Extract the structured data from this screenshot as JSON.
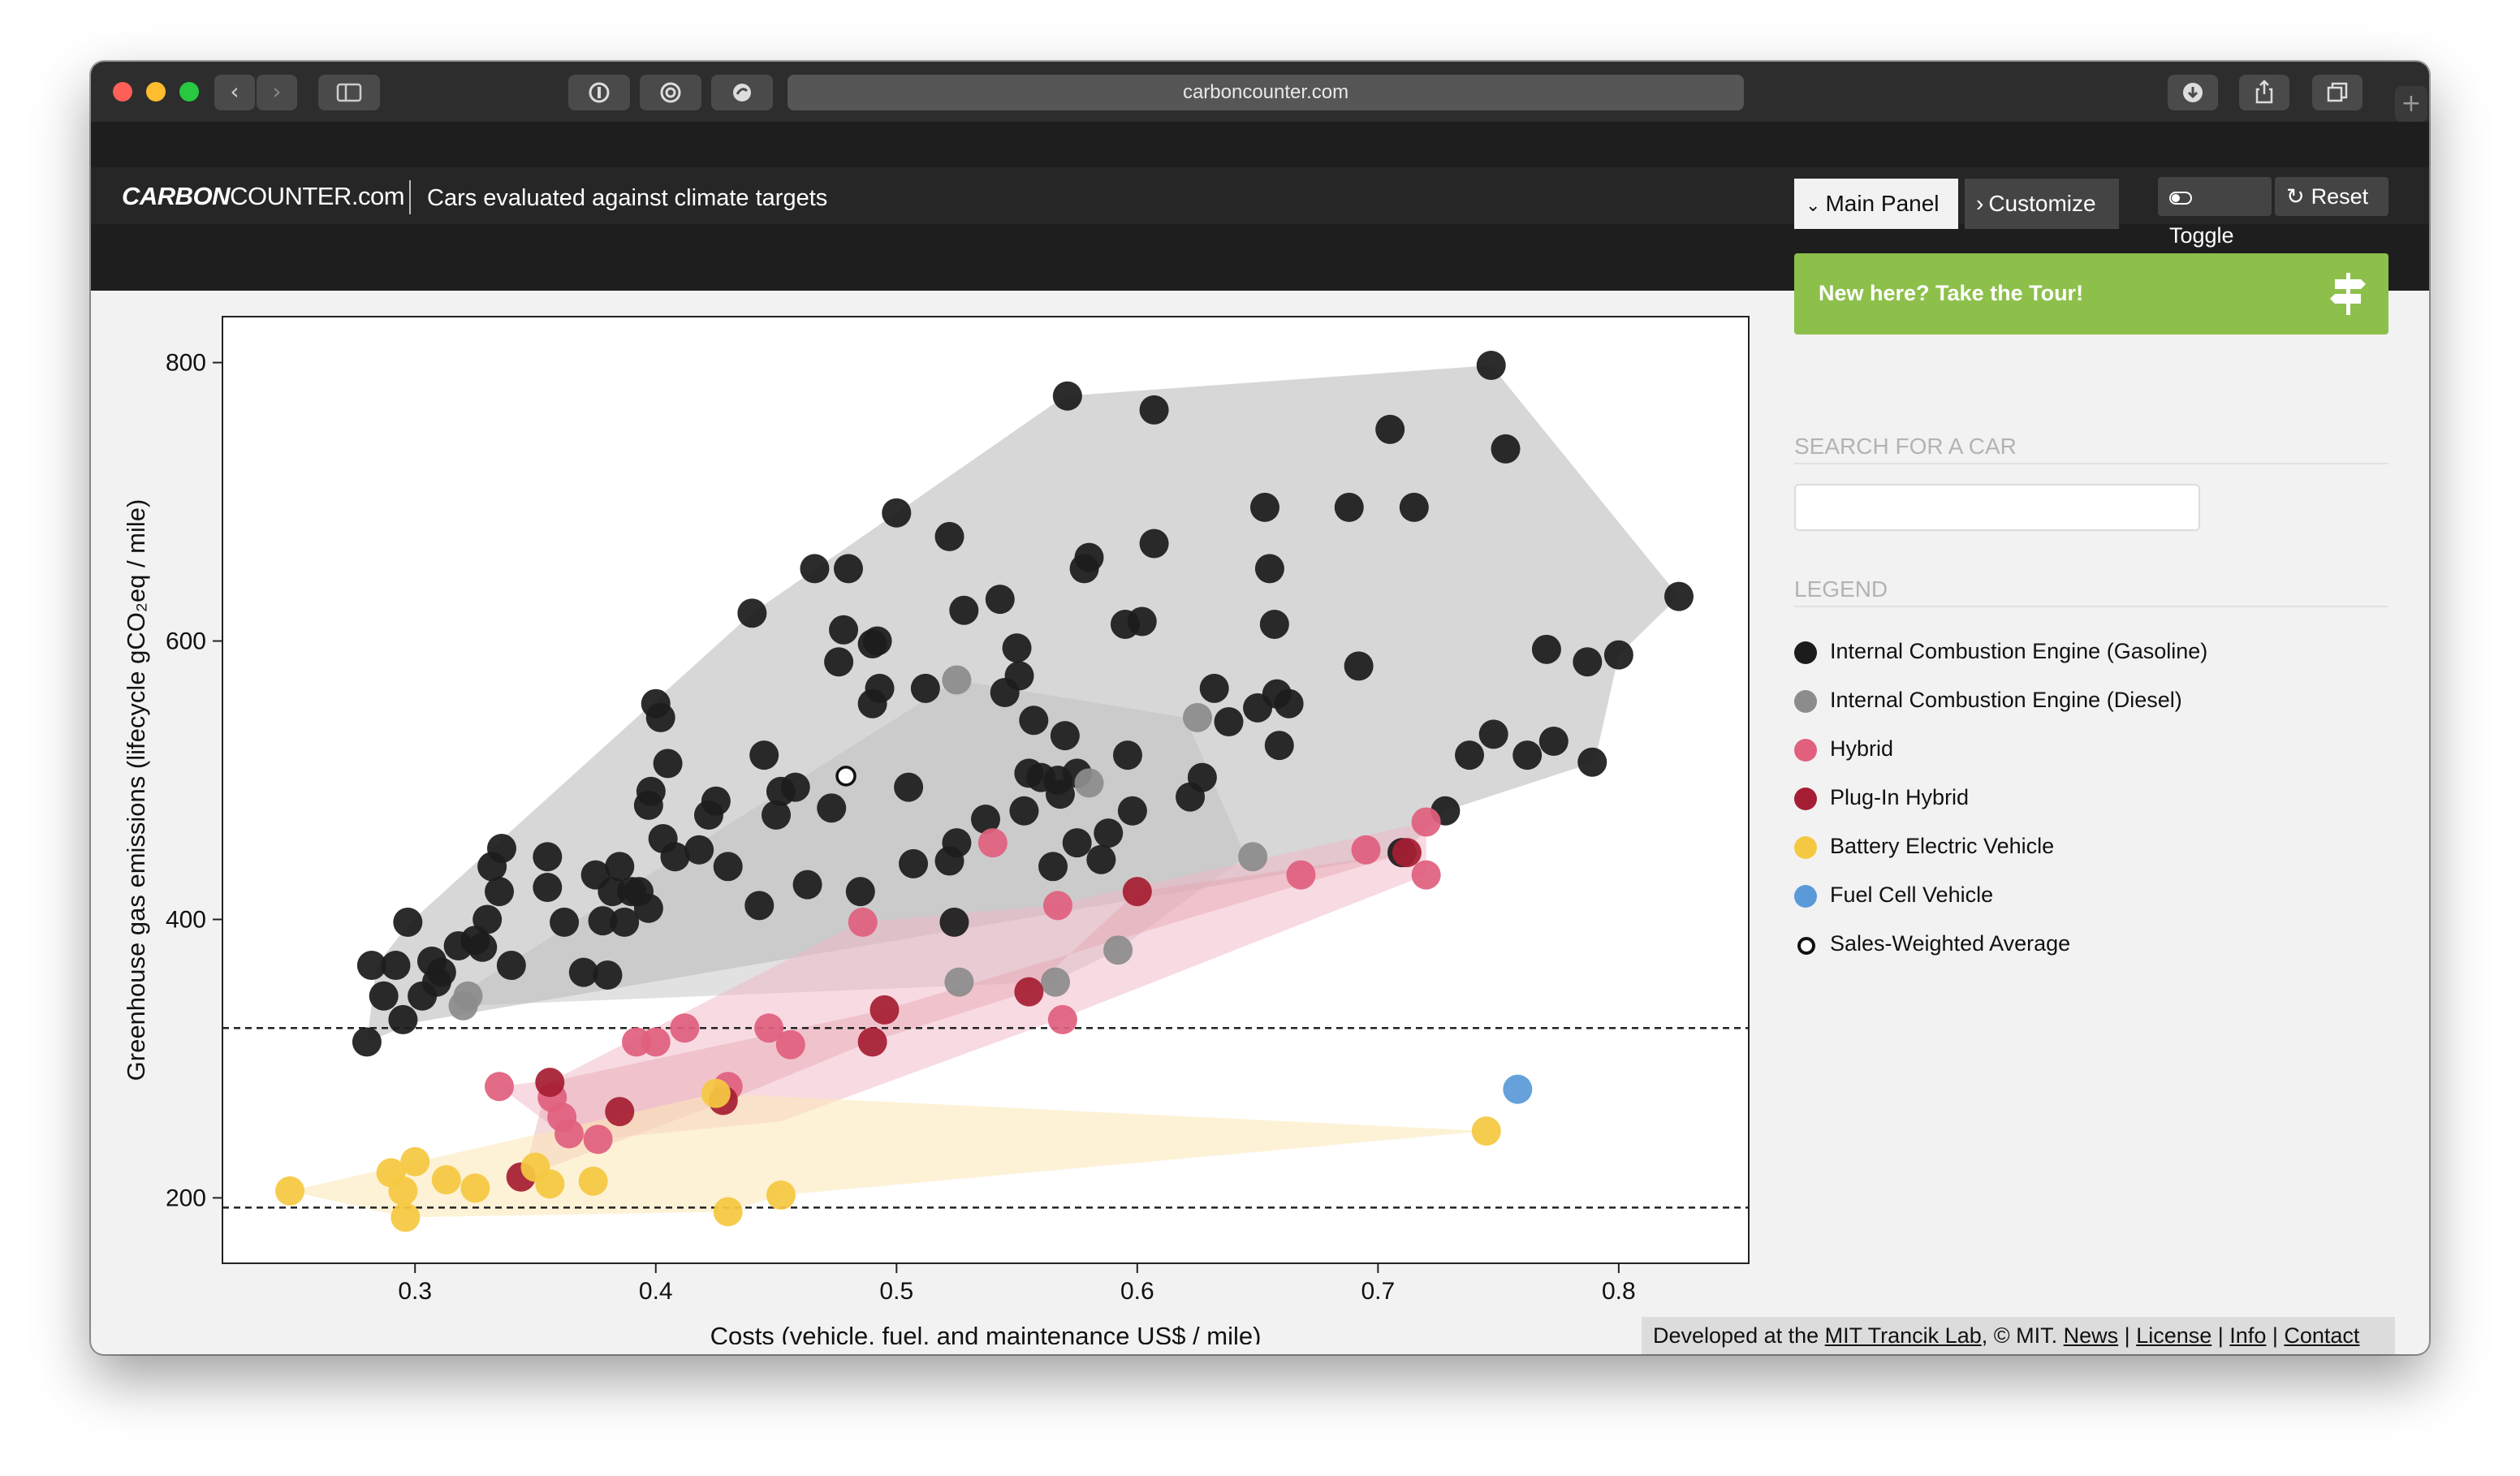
{
  "browser": {
    "url": "carbon​counter.com"
  },
  "header": {
    "logo_bold": "CARBON",
    "logo_rest": "COUNTER.com",
    "tagline": "Cars evaluated against climate targets",
    "tab_main": "Main Panel",
    "tab_customize": "Customize",
    "toggle": "Toggle",
    "reset": "Reset"
  },
  "sidebar": {
    "tour": "New here? Take the Tour!",
    "search_title": "SEARCH FOR A CAR",
    "search_value": "",
    "legend_title": "LEGEND",
    "legend": [
      {
        "label": "Internal Combustion Engine (Gasoline)",
        "color": "#1c1c1c"
      },
      {
        "label": "Internal Combustion Engine (Diesel)",
        "color": "#8c8c8c"
      },
      {
        "label": "Hybrid",
        "color": "#e0607e"
      },
      {
        "label": "Plug-In Hybrid",
        "color": "#a61e33"
      },
      {
        "label": "Battery Electric Vehicle",
        "color": "#f5c842"
      },
      {
        "label": "Fuel Cell Vehicle",
        "color": "#5b9ad9"
      },
      {
        "label": "Sales-Weighted Average",
        "color": "#ffffff"
      }
    ]
  },
  "footer": {
    "prefix": "Developed at the ",
    "lab": "MIT Trancik Lab",
    "mid": ", © MIT. ",
    "news": "News",
    "license": "License",
    "info": "Info",
    "contact": "Contact",
    "sep": " | "
  },
  "chart_data": {
    "type": "scatter",
    "xlabel": "Costs (vehicle, fuel, and maintenance US$ / mile)",
    "ylabel": "Greenhouse gas emissions (lifecycle gCO₂eq / mile)",
    "xlim": [
      0.22,
      0.854
    ],
    "ylim": [
      153,
      833
    ],
    "xticks": [
      0.3,
      0.4,
      0.5,
      0.6,
      0.7,
      0.8
    ],
    "xtick_labels": [
      "0.3",
      "0.4",
      "0.5",
      "0.6",
      "0.7",
      "0.8"
    ],
    "yticks": [
      200,
      400,
      600,
      800
    ],
    "ytick_labels": [
      "200",
      "400",
      "600",
      "800"
    ],
    "reference_lines": [
      322,
      193
    ],
    "series": [
      {
        "name": "Internal Combustion Engine (Gasoline)",
        "color": "#1c1c1c",
        "hull": [
          [
            0.28,
            312
          ],
          [
            0.284,
            367
          ],
          [
            0.298,
            398
          ],
          [
            0.44,
            620
          ],
          [
            0.5,
            692
          ],
          [
            0.57,
            776
          ],
          [
            0.747,
            798
          ],
          [
            0.825,
            632
          ],
          [
            0.8,
            590
          ],
          [
            0.79,
            513
          ],
          [
            0.728,
            478
          ],
          [
            0.71,
            447
          ],
          [
            0.3,
            326
          ]
        ],
        "points": [
          [
            0.28,
            312
          ],
          [
            0.282,
            367
          ],
          [
            0.287,
            345
          ],
          [
            0.292,
            367
          ],
          [
            0.295,
            328
          ],
          [
            0.297,
            398
          ],
          [
            0.303,
            345
          ],
          [
            0.307,
            370
          ],
          [
            0.309,
            355
          ],
          [
            0.311,
            362
          ],
          [
            0.318,
            381
          ],
          [
            0.325,
            385
          ],
          [
            0.328,
            380
          ],
          [
            0.33,
            400
          ],
          [
            0.332,
            438
          ],
          [
            0.335,
            420
          ],
          [
            0.336,
            451
          ],
          [
            0.34,
            367
          ],
          [
            0.355,
            445
          ],
          [
            0.355,
            423
          ],
          [
            0.362,
            398
          ],
          [
            0.37,
            362
          ],
          [
            0.375,
            432
          ],
          [
            0.38,
            360
          ],
          [
            0.378,
            399
          ],
          [
            0.382,
            420
          ],
          [
            0.385,
            438
          ],
          [
            0.387,
            398
          ],
          [
            0.39,
            420
          ],
          [
            0.393,
            420
          ],
          [
            0.397,
            408
          ],
          [
            0.397,
            482
          ],
          [
            0.398,
            492
          ],
          [
            0.4,
            555
          ],
          [
            0.402,
            545
          ],
          [
            0.403,
            458
          ],
          [
            0.405,
            512
          ],
          [
            0.408,
            445
          ],
          [
            0.418,
            450
          ],
          [
            0.422,
            475
          ],
          [
            0.425,
            485
          ],
          [
            0.43,
            438
          ],
          [
            0.44,
            620
          ],
          [
            0.443,
            410
          ],
          [
            0.445,
            518
          ],
          [
            0.45,
            475
          ],
          [
            0.452,
            492
          ],
          [
            0.458,
            495
          ],
          [
            0.463,
            425
          ],
          [
            0.466,
            652
          ],
          [
            0.473,
            480
          ],
          [
            0.476,
            585
          ],
          [
            0.478,
            608
          ],
          [
            0.48,
            652
          ],
          [
            0.485,
            420
          ],
          [
            0.49,
            598
          ],
          [
            0.49,
            555
          ],
          [
            0.492,
            600
          ],
          [
            0.493,
            566
          ],
          [
            0.5,
            692
          ],
          [
            0.505,
            495
          ],
          [
            0.507,
            440
          ],
          [
            0.512,
            566
          ],
          [
            0.522,
            442
          ],
          [
            0.522,
            675
          ],
          [
            0.524,
            398
          ],
          [
            0.525,
            455
          ],
          [
            0.528,
            622
          ],
          [
            0.537,
            472
          ],
          [
            0.543,
            630
          ],
          [
            0.545,
            563
          ],
          [
            0.55,
            595
          ],
          [
            0.551,
            575
          ],
          [
            0.553,
            478
          ],
          [
            0.555,
            505
          ],
          [
            0.557,
            543
          ],
          [
            0.56,
            502
          ],
          [
            0.565,
            438
          ],
          [
            0.567,
            500
          ],
          [
            0.568,
            490
          ],
          [
            0.571,
            776
          ],
          [
            0.57,
            532
          ],
          [
            0.575,
            505
          ],
          [
            0.575,
            455
          ],
          [
            0.578,
            652
          ],
          [
            0.58,
            660
          ],
          [
            0.585,
            443
          ],
          [
            0.588,
            462
          ],
          [
            0.595,
            612
          ],
          [
            0.596,
            518
          ],
          [
            0.598,
            478
          ],
          [
            0.602,
            614
          ],
          [
            0.607,
            670
          ],
          [
            0.607,
            766
          ],
          [
            0.622,
            488
          ],
          [
            0.627,
            502
          ],
          [
            0.632,
            566
          ],
          [
            0.638,
            542
          ],
          [
            0.65,
            552
          ],
          [
            0.653,
            696
          ],
          [
            0.655,
            652
          ],
          [
            0.657,
            612
          ],
          [
            0.658,
            562
          ],
          [
            0.659,
            525
          ],
          [
            0.663,
            555
          ],
          [
            0.688,
            696
          ],
          [
            0.692,
            582
          ],
          [
            0.705,
            752
          ],
          [
            0.71,
            448
          ],
          [
            0.715,
            696
          ],
          [
            0.728,
            478
          ],
          [
            0.738,
            518
          ],
          [
            0.747,
            798
          ],
          [
            0.748,
            533
          ],
          [
            0.753,
            738
          ],
          [
            0.762,
            518
          ],
          [
            0.77,
            594
          ],
          [
            0.773,
            528
          ],
          [
            0.787,
            585
          ],
          [
            0.789,
            513
          ],
          [
            0.8,
            590
          ],
          [
            0.825,
            632
          ]
        ]
      },
      {
        "name": "Internal Combustion Engine (Diesel)",
        "color": "#8c8c8c",
        "hull": [
          [
            0.32,
            338
          ],
          [
            0.315,
            342
          ],
          [
            0.525,
            572
          ],
          [
            0.62,
            545
          ],
          [
            0.645,
            445
          ],
          [
            0.592,
            378
          ],
          [
            0.565,
            355
          ]
        ],
        "points": [
          [
            0.32,
            338
          ],
          [
            0.322,
            345
          ],
          [
            0.525,
            572
          ],
          [
            0.526,
            355
          ],
          [
            0.566,
            355
          ],
          [
            0.58,
            498
          ],
          [
            0.592,
            378
          ],
          [
            0.625,
            545
          ],
          [
            0.648,
            445
          ]
        ]
      },
      {
        "name": "Hybrid",
        "color": "#e0607e",
        "hull": [
          [
            0.335,
            280
          ],
          [
            0.358,
            285
          ],
          [
            0.485,
            398
          ],
          [
            0.565,
            410
          ],
          [
            0.72,
            470
          ],
          [
            0.72,
            432
          ],
          [
            0.567,
            328
          ],
          [
            0.452,
            255
          ],
          [
            0.375,
            242
          ],
          [
            0.362,
            245
          ]
        ],
        "points": [
          [
            0.335,
            280
          ],
          [
            0.357,
            272
          ],
          [
            0.361,
            258
          ],
          [
            0.364,
            246
          ],
          [
            0.376,
            242
          ],
          [
            0.392,
            312
          ],
          [
            0.4,
            312
          ],
          [
            0.412,
            322
          ],
          [
            0.43,
            280
          ],
          [
            0.447,
            322
          ],
          [
            0.456,
            310
          ],
          [
            0.486,
            398
          ],
          [
            0.54,
            455
          ],
          [
            0.567,
            410
          ],
          [
            0.569,
            328
          ],
          [
            0.668,
            432
          ],
          [
            0.695,
            450
          ],
          [
            0.72,
            470
          ],
          [
            0.72,
            432
          ]
        ]
      },
      {
        "name": "Plug-In Hybrid",
        "color": "#a61e33",
        "hull": [
          [
            0.355,
            283
          ],
          [
            0.345,
            215
          ],
          [
            0.43,
            270
          ],
          [
            0.489,
            312
          ],
          [
            0.555,
            348
          ],
          [
            0.6,
            420
          ],
          [
            0.712,
            448
          ],
          [
            0.495,
            335
          ]
        ],
        "points": [
          [
            0.344,
            215
          ],
          [
            0.356,
            283
          ],
          [
            0.385,
            262
          ],
          [
            0.428,
            270
          ],
          [
            0.49,
            312
          ],
          [
            0.495,
            335
          ],
          [
            0.555,
            348
          ],
          [
            0.6,
            420
          ],
          [
            0.712,
            448
          ]
        ]
      },
      {
        "name": "Battery Electric Vehicle",
        "color": "#f5c842",
        "hull": [
          [
            0.248,
            205
          ],
          [
            0.425,
            275
          ],
          [
            0.745,
            248
          ],
          [
            0.452,
            202
          ],
          [
            0.43,
            190
          ],
          [
            0.296,
            186
          ]
        ],
        "points": [
          [
            0.248,
            205
          ],
          [
            0.29,
            218
          ],
          [
            0.295,
            205
          ],
          [
            0.296,
            186
          ],
          [
            0.3,
            226
          ],
          [
            0.313,
            213
          ],
          [
            0.325,
            207
          ],
          [
            0.35,
            222
          ],
          [
            0.356,
            210
          ],
          [
            0.374,
            212
          ],
          [
            0.425,
            275
          ],
          [
            0.43,
            190
          ],
          [
            0.452,
            202
          ],
          [
            0.745,
            248
          ]
        ]
      },
      {
        "name": "Fuel Cell Vehicle",
        "color": "#5b9ad9",
        "points": [
          [
            0.758,
            278
          ]
        ]
      },
      {
        "name": "Sales-Weighted Average",
        "color": "#ffffff",
        "points": [
          [
            0.479,
            503
          ]
        ]
      }
    ]
  }
}
